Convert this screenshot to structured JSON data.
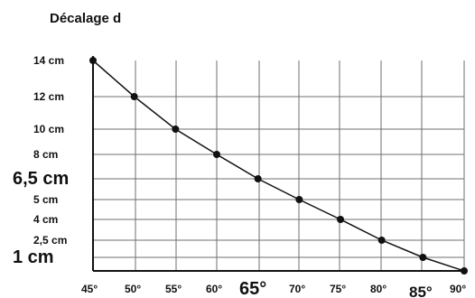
{
  "chart_data": {
    "type": "line",
    "title": "Décalage d",
    "xlabel": "",
    "ylabel": "",
    "grid": true,
    "x_ticks": [
      {
        "value": 45,
        "label": "45°",
        "size": "small"
      },
      {
        "value": 50,
        "label": "50°",
        "size": "small"
      },
      {
        "value": 55,
        "label": "55°",
        "size": "small"
      },
      {
        "value": 60,
        "label": "60°",
        "size": "small"
      },
      {
        "value": 65,
        "label": "65°",
        "size": "large"
      },
      {
        "value": 70,
        "label": "70°",
        "size": "small"
      },
      {
        "value": 75,
        "label": "75°",
        "size": "small"
      },
      {
        "value": 80,
        "label": "80°",
        "size": "small"
      },
      {
        "value": 85,
        "label": "85°",
        "size": "medium"
      },
      {
        "value": 90,
        "label": "90°",
        "size": "small"
      }
    ],
    "y_ticks": [
      {
        "value": 14,
        "label": "14 cm",
        "size": "small"
      },
      {
        "value": 12,
        "label": "12 cm",
        "size": "small"
      },
      {
        "value": 10,
        "label": "10 cm",
        "size": "small"
      },
      {
        "value": 8,
        "label": "8 cm",
        "size": "small"
      },
      {
        "value": 6.5,
        "label": "6,5 cm",
        "size": "large"
      },
      {
        "value": 5,
        "label": "5 cm",
        "size": "small"
      },
      {
        "value": 4,
        "label": "4 cm",
        "size": "small"
      },
      {
        "value": 2.5,
        "label": "2,5 cm",
        "size": "small"
      },
      {
        "value": 1,
        "label": "1 cm",
        "size": "large"
      }
    ],
    "x": [
      45,
      50,
      55,
      60,
      65,
      70,
      75,
      80,
      85,
      90
    ],
    "values": [
      14,
      12,
      10,
      8,
      6.5,
      5,
      4,
      2.5,
      1,
      0
    ],
    "marker_color": "#111111",
    "line_color": "#111111",
    "grid_color": "#6f6f6f"
  }
}
